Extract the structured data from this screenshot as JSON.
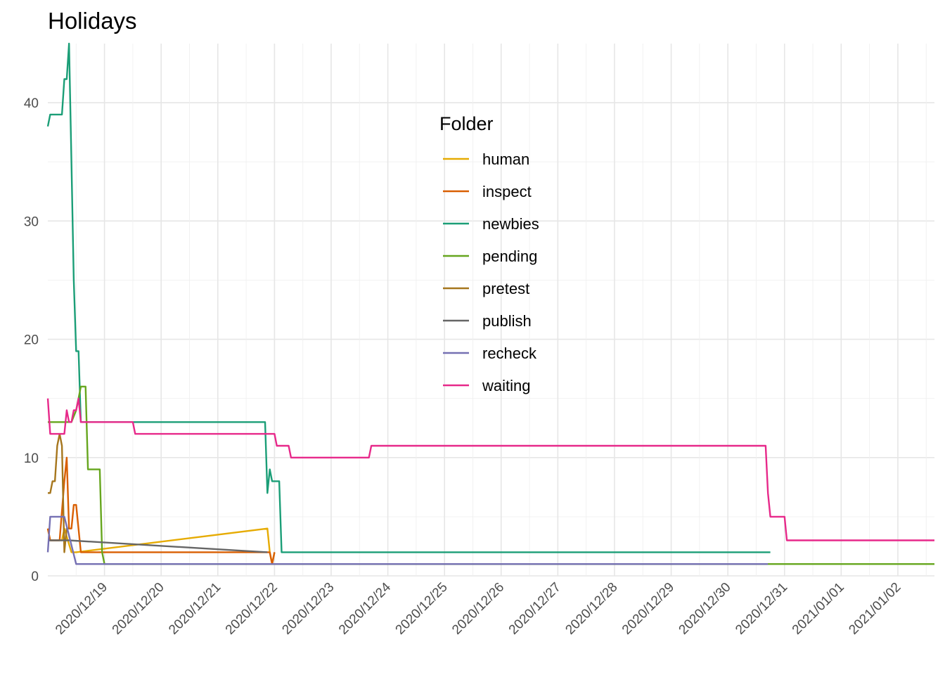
{
  "chart_data": {
    "type": "line",
    "title": "Holidays",
    "xlabel": "",
    "ylabel": "",
    "x_type": "date",
    "xlim": [
      "2020-12-18",
      "2021-01-02T15:30"
    ],
    "ylim": [
      0,
      45
    ],
    "y_ticks": [
      0,
      10,
      20,
      30,
      40
    ],
    "x_ticks": [
      {
        "date": "2020-12-19",
        "label": "2020/12/19"
      },
      {
        "date": "2020-12-20",
        "label": "2020/12/20"
      },
      {
        "date": "2020-12-21",
        "label": "2020/12/21"
      },
      {
        "date": "2020-12-22",
        "label": "2020/12/22"
      },
      {
        "date": "2020-12-23",
        "label": "2020/12/23"
      },
      {
        "date": "2020-12-24",
        "label": "2020/12/24"
      },
      {
        "date": "2020-12-25",
        "label": "2020/12/25"
      },
      {
        "date": "2020-12-26",
        "label": "2020/12/26"
      },
      {
        "date": "2020-12-27",
        "label": "2020/12/27"
      },
      {
        "date": "2020-12-28",
        "label": "2020/12/28"
      },
      {
        "date": "2020-12-29",
        "label": "2020/12/29"
      },
      {
        "date": "2020-12-30",
        "label": "2020/12/30"
      },
      {
        "date": "2020-12-31",
        "label": "2020/12/31"
      },
      {
        "date": "2021-01-01",
        "label": "2021/01/01"
      },
      {
        "date": "2021-01-02",
        "label": "2021/01/02"
      }
    ],
    "grid": true,
    "legend": {
      "title": "Folder",
      "position": "top-center (inside plot)"
    },
    "series": [
      {
        "name": "human",
        "color": "#E6AB02",
        "points": [
          [
            "2020-12-18T00:00",
            4
          ],
          [
            "2020-12-18T01:00",
            3
          ],
          [
            "2020-12-18T06:00",
            3
          ],
          [
            "2020-12-18T07:00",
            4
          ],
          [
            "2020-12-18T10:00",
            2
          ],
          [
            "2020-12-18T12:00",
            2
          ],
          [
            "2020-12-21T21:00",
            4
          ],
          [
            "2020-12-21T22:00",
            2
          ],
          [
            "2020-12-21T23:00",
            1
          ],
          [
            "2020-12-22T00:00",
            2
          ]
        ]
      },
      {
        "name": "inspect",
        "color": "#D95F02",
        "points": [
          [
            "2020-12-18T00:00",
            4
          ],
          [
            "2020-12-18T01:00",
            3
          ],
          [
            "2020-12-18T05:00",
            3
          ],
          [
            "2020-12-18T07:00",
            8
          ],
          [
            "2020-12-18T08:00",
            10
          ],
          [
            "2020-12-18T09:00",
            4
          ],
          [
            "2020-12-18T10:00",
            4
          ],
          [
            "2020-12-18T11:00",
            6
          ],
          [
            "2020-12-18T12:00",
            6
          ],
          [
            "2020-12-18T14:00",
            2
          ],
          [
            "2020-12-21T22:00",
            2
          ],
          [
            "2020-12-21T23:00",
            1
          ],
          [
            "2020-12-22T00:00",
            2
          ]
        ]
      },
      {
        "name": "newbies",
        "color": "#1B9E77",
        "points": [
          [
            "2020-12-18T00:00",
            38
          ],
          [
            "2020-12-18T01:00",
            39
          ],
          [
            "2020-12-18T06:00",
            39
          ],
          [
            "2020-12-18T07:00",
            42
          ],
          [
            "2020-12-18T08:00",
            42
          ],
          [
            "2020-12-18T09:00",
            45
          ],
          [
            "2020-12-18T10:00",
            35
          ],
          [
            "2020-12-18T11:00",
            25
          ],
          [
            "2020-12-18T12:00",
            19
          ],
          [
            "2020-12-18T13:00",
            19
          ],
          [
            "2020-12-18T14:00",
            13
          ],
          [
            "2020-12-21T20:00",
            13
          ],
          [
            "2020-12-21T21:00",
            7
          ],
          [
            "2020-12-21T22:00",
            9
          ],
          [
            "2020-12-21T23:00",
            8
          ],
          [
            "2020-12-22T02:00",
            8
          ],
          [
            "2020-12-22T03:00",
            2
          ],
          [
            "2020-12-30T18:00",
            2
          ]
        ]
      },
      {
        "name": "pending",
        "color": "#66A61E",
        "points": [
          [
            "2020-12-18T00:00",
            13
          ],
          [
            "2020-12-18T10:00",
            13
          ],
          [
            "2020-12-18T12:00",
            14
          ],
          [
            "2020-12-18T14:00",
            16
          ],
          [
            "2020-12-18T16:00",
            16
          ],
          [
            "2020-12-18T17:00",
            9
          ],
          [
            "2020-12-18T20:00",
            9
          ],
          [
            "2020-12-18T22:00",
            9
          ],
          [
            "2020-12-18T23:00",
            2
          ],
          [
            "2020-12-19T00:00",
            1
          ],
          [
            "2021-01-02T15:30",
            1
          ]
        ]
      },
      {
        "name": "pretest",
        "color": "#A6761D",
        "points": [
          [
            "2020-12-18T00:00",
            7
          ],
          [
            "2020-12-18T01:00",
            7
          ],
          [
            "2020-12-18T02:00",
            8
          ],
          [
            "2020-12-18T03:00",
            8
          ],
          [
            "2020-12-18T04:00",
            11
          ],
          [
            "2020-12-18T05:00",
            12
          ],
          [
            "2020-12-18T06:00",
            11
          ],
          [
            "2020-12-18T07:00",
            2
          ],
          [
            "2020-12-18T08:00",
            4
          ],
          [
            "2020-12-18T09:00",
            4
          ]
        ]
      },
      {
        "name": "publish",
        "color": "#666666",
        "points": [
          [
            "2020-12-18T00:00",
            3
          ],
          [
            "2020-12-18T09:00",
            3
          ],
          [
            "2020-12-21T21:00",
            2
          ]
        ]
      },
      {
        "name": "recheck",
        "color": "#7570B3",
        "points": [
          [
            "2020-12-18T00:00",
            2
          ],
          [
            "2020-12-18T01:00",
            5
          ],
          [
            "2020-12-18T07:00",
            5
          ],
          [
            "2020-12-18T12:00",
            1
          ],
          [
            "2020-12-30T17:00",
            1
          ]
        ]
      },
      {
        "name": "waiting",
        "color": "#E7298A",
        "points": [
          [
            "2020-12-18T00:00",
            15
          ],
          [
            "2020-12-18T01:00",
            12
          ],
          [
            "2020-12-18T07:00",
            12
          ],
          [
            "2020-12-18T08:00",
            14
          ],
          [
            "2020-12-18T09:00",
            13
          ],
          [
            "2020-12-18T10:00",
            13
          ],
          [
            "2020-12-18T11:00",
            14
          ],
          [
            "2020-12-18T12:00",
            14
          ],
          [
            "2020-12-18T13:00",
            15
          ],
          [
            "2020-12-18T14:00",
            13
          ],
          [
            "2020-12-19T12:00",
            13
          ],
          [
            "2020-12-19T13:00",
            12
          ],
          [
            "2020-12-22T00:00",
            12
          ],
          [
            "2020-12-22T01:00",
            11
          ],
          [
            "2020-12-22T06:00",
            11
          ],
          [
            "2020-12-22T07:00",
            10
          ],
          [
            "2020-12-23T16:00",
            10
          ],
          [
            "2020-12-23T17:00",
            11
          ],
          [
            "2020-12-30T16:00",
            11
          ],
          [
            "2020-12-30T17:00",
            7
          ],
          [
            "2020-12-30T18:00",
            5
          ],
          [
            "2020-12-31T00:00",
            5
          ],
          [
            "2020-12-31T01:00",
            3
          ],
          [
            "2021-01-02T15:30",
            3
          ]
        ]
      }
    ]
  }
}
